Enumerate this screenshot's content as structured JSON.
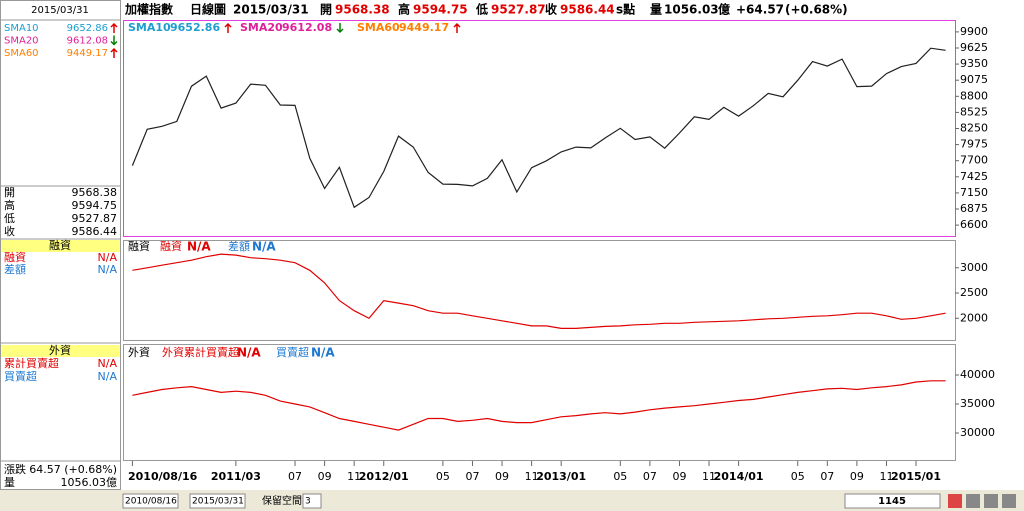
{
  "header": {
    "index_name": "加權指數",
    "period": "日線圖",
    "date": "2015/03/31",
    "open_label": "開",
    "open": "9568.38",
    "high_label": "高",
    "high": "9594.75",
    "low_label": "低",
    "low": "9527.87",
    "close_label": "收",
    "close": "9586.44",
    "unit": "s點",
    "volume_label": "量",
    "volume": "1056.03",
    "volume_unit": "億",
    "change": "+64.57",
    "change_pct": "(+0.68%)"
  },
  "sma": [
    {
      "name": "SMA10",
      "value": "9652.86",
      "color": "#1e9fd0",
      "trend": "up"
    },
    {
      "name": "SMA20",
      "value": "9612.08",
      "color": "#e0209a",
      "trend": "down"
    },
    {
      "name": "SMA60",
      "value": "9449.17",
      "color": "#ff7f00",
      "trend": "up"
    }
  ],
  "margin": {
    "title": "融資",
    "rows": [
      {
        "label": "融資",
        "value": "N/A",
        "color": "#e00000"
      },
      {
        "label": "差額",
        "value": "N/A",
        "color": "#1e78d0"
      }
    ]
  },
  "foreign": {
    "title": "外資",
    "rows": [
      {
        "label": "累計買賣超",
        "legend": "外資累計買賣超",
        "value": "N/A",
        "color": "#e00000"
      },
      {
        "label": "買賣超",
        "legend": "買賣超",
        "value": "N/A",
        "color": "#1e78d0"
      }
    ]
  },
  "footer": {
    "change_label": "漲跌",
    "change": "64.57 (+0.68%)",
    "volume_label": "量",
    "volume": "1056.03億"
  },
  "toolbar": {
    "start": "2010/08/16",
    "end": "2015/03/31",
    "reserve_label": "保留空間",
    "reserve": "3",
    "count": "1145"
  },
  "chart_data": [
    {
      "type": "line",
      "color": "#202020",
      "categories": [
        "2010/08/16",
        null,
        null,
        null,
        null,
        null,
        null,
        "2011/03",
        null,
        null,
        null,
        "07",
        null,
        "09",
        null,
        "11",
        null,
        "2012/01",
        null,
        null,
        null,
        "05",
        null,
        "07",
        null,
        "09",
        null,
        "11",
        null,
        "2013/01",
        null,
        null,
        null,
        "05",
        null,
        "07",
        null,
        "09",
        null,
        "11",
        null,
        "2014/01",
        null,
        null,
        null,
        "05",
        null,
        "07",
        null,
        "09",
        null,
        "11",
        null,
        "2015/01",
        null,
        null
      ],
      "values": [
        7616,
        8237,
        8287,
        8372,
        8972,
        9145,
        8599,
        8683,
        9008,
        8988,
        8652,
        8644,
        7741,
        7225,
        7588,
        6904,
        7072,
        7517,
        8121,
        7933,
        7501,
        7301,
        7296,
        7270,
        7397,
        7715,
        7166,
        7581,
        7699,
        7850,
        7932,
        7918,
        8093,
        8254,
        8062,
        8107,
        7914,
        8173,
        8450,
        8406,
        8611,
        8462,
        8640,
        8849,
        8791,
        9075,
        9393,
        9315,
        9436,
        8966,
        8974,
        9187,
        9307,
        9361,
        9622,
        9586
      ],
      "ylim": [
        6414,
        10086
      ],
      "yticks": [
        6600,
        6875,
        7150,
        7425,
        7700,
        7975,
        8250,
        8525,
        8800,
        9075,
        9350,
        9625,
        9900
      ]
    },
    {
      "type": "line",
      "color": "#e00000",
      "values": [
        2950,
        3000,
        3050,
        3100,
        3150,
        3220,
        3270,
        3250,
        3200,
        3180,
        3150,
        3100,
        2950,
        2700,
        2350,
        2150,
        2000,
        2350,
        2300,
        2250,
        2150,
        2100,
        2100,
        2050,
        2000,
        1950,
        1900,
        1850,
        1850,
        1800,
        1800,
        1820,
        1840,
        1850,
        1870,
        1880,
        1900,
        1900,
        1920,
        1930,
        1940,
        1950,
        1970,
        1990,
        2000,
        2020,
        2040,
        2050,
        2070,
        2100,
        2100,
        2050,
        1980,
        2000,
        2050,
        2100
      ],
      "ylim": [
        1570,
        3530
      ],
      "yticks": [
        2000,
        2500,
        3000
      ]
    },
    {
      "type": "line",
      "color": "#e00000",
      "values": [
        36500,
        37000,
        37500,
        37800,
        38000,
        37500,
        37000,
        37200,
        37000,
        36500,
        35500,
        35000,
        34500,
        33500,
        32500,
        32000,
        31500,
        31000,
        30500,
        31500,
        32500,
        32500,
        32000,
        32200,
        32500,
        32000,
        31800,
        31800,
        32300,
        32800,
        33000,
        33300,
        33500,
        33300,
        33600,
        34000,
        34300,
        34500,
        34700,
        35000,
        35300,
        35600,
        35800,
        36200,
        36600,
        37000,
        37300,
        37600,
        37700,
        37500,
        37800,
        38000,
        38300,
        38800,
        39000,
        39000
      ],
      "ylim": [
        25350,
        45170
      ],
      "yticks": [
        30000,
        35000,
        40000
      ]
    }
  ]
}
